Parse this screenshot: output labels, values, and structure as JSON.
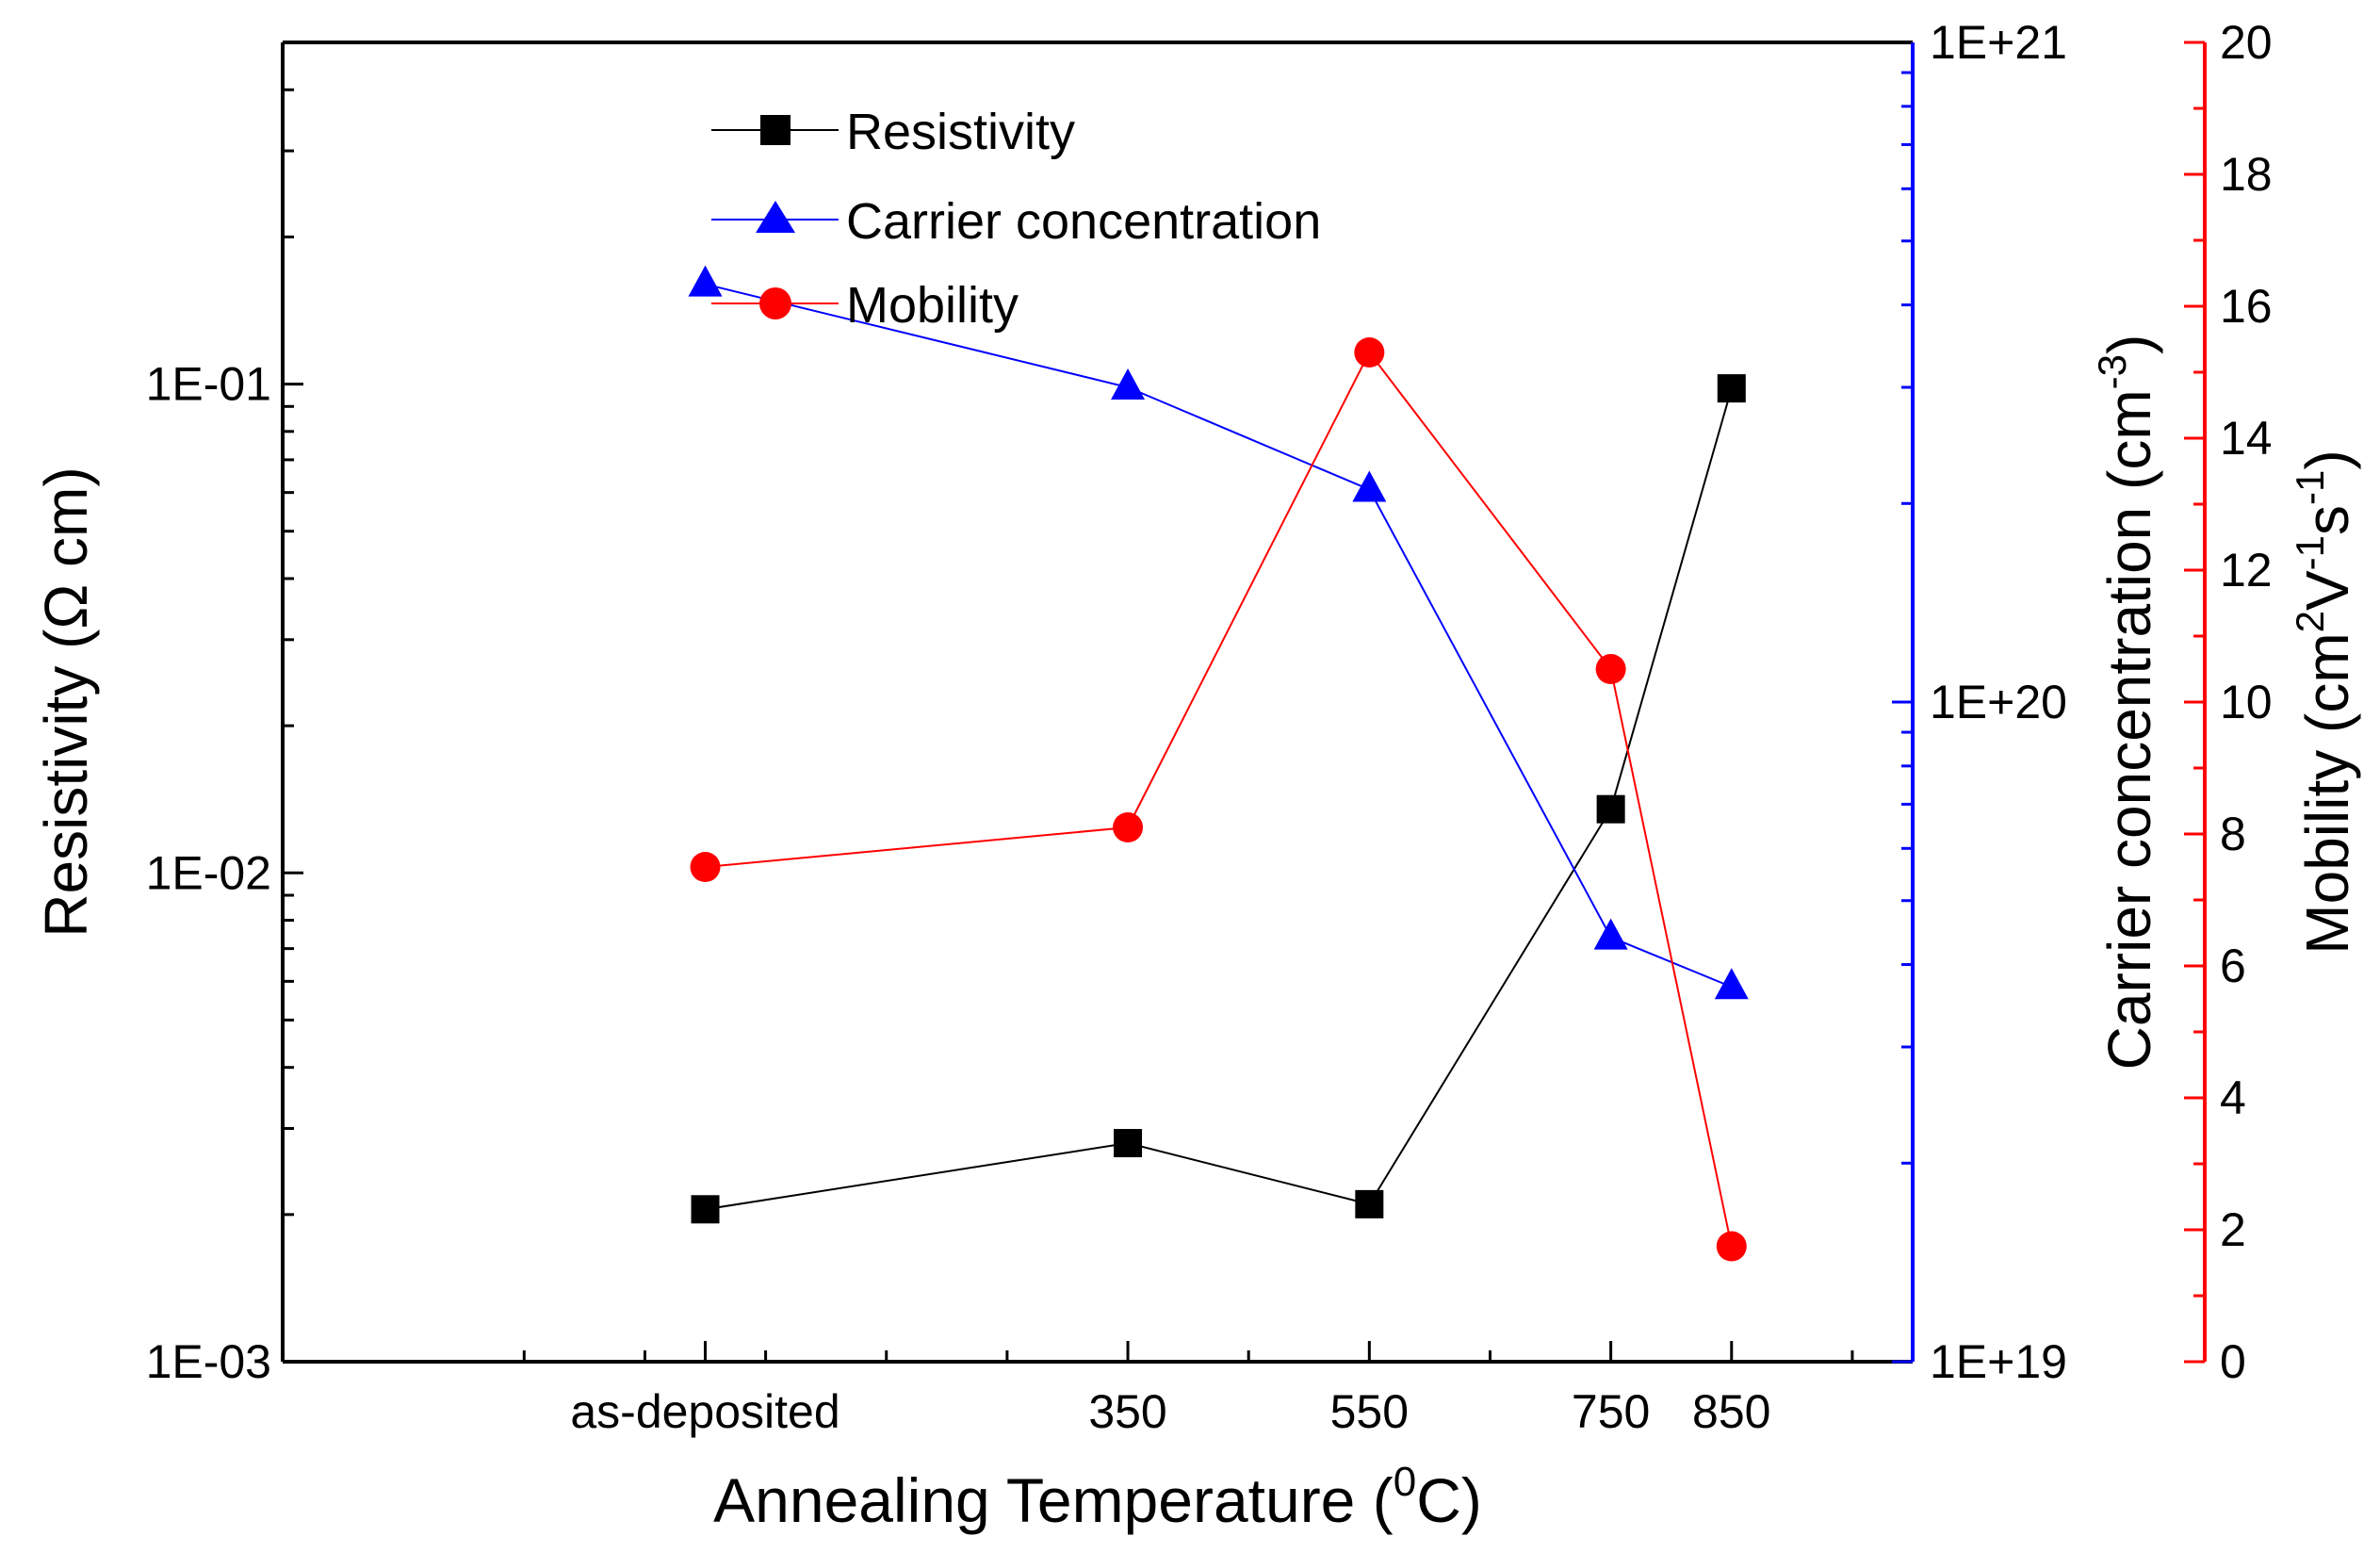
{
  "chart_data": {
    "type": "line",
    "x_axis": {
      "title_main": "Annealing Temperature (",
      "title_sup": "0",
      "title_end": "C)",
      "categories": [
        "as-deposited",
        "350",
        "550",
        "750",
        "850"
      ],
      "positions": [
        0,
        350,
        550,
        750,
        850
      ],
      "range": [
        -350,
        1000
      ]
    },
    "axes": {
      "left": {
        "title": "Resistivity (Ω cm)",
        "scale": "log",
        "range": [
          0.001,
          0.5
        ],
        "tick_labels": [
          "1E-03",
          "1E-02",
          "1E-01"
        ],
        "tick_values": [
          0.001,
          0.01,
          0.1
        ],
        "color": "#000000"
      },
      "right_inner": {
        "title_main": "Carrier concentration (cm",
        "title_sup": "-3",
        "title_end": ")",
        "scale": "log",
        "range": [
          1e+19,
          1e+21
        ],
        "tick_labels": [
          "1E+19",
          "1E+20",
          "1E+21"
        ],
        "tick_values": [
          1e+19,
          1e+20,
          1e+21
        ],
        "color": "#0000ff"
      },
      "right_outer": {
        "title_main": "Mobility (cm",
        "title_sup1": "2",
        "title_mid1": "V",
        "title_sup2": "-1",
        "title_mid2": "s",
        "title_sup3": "-1",
        "title_end": ")",
        "scale": "linear",
        "range": [
          0,
          20
        ],
        "tick_labels": [
          "0",
          "2",
          "4",
          "6",
          "8",
          "10",
          "12",
          "14",
          "16",
          "18",
          "20"
        ],
        "tick_values": [
          0,
          2,
          4,
          6,
          8,
          10,
          12,
          14,
          16,
          18,
          20
        ],
        "color": "#ff0000"
      }
    },
    "series": [
      {
        "name": "Resistivity",
        "axis": "left",
        "marker": "square",
        "color": "#000000",
        "values": [
          0.00205,
          0.0028,
          0.0021,
          0.0135,
          0.098
        ]
      },
      {
        "name": "Carrier concentration",
        "axis": "right_inner",
        "marker": "triangle",
        "color": "#0000ff",
        "values": [
          4.3e+20,
          3e+20,
          2.1e+20,
          4.4e+19,
          3.7e+19
        ]
      },
      {
        "name": "Mobility",
        "axis": "right_outer",
        "marker": "circle",
        "color": "#ff0000",
        "values": [
          7.5,
          8.1,
          15.3,
          10.5,
          1.75
        ]
      }
    ],
    "legend": {
      "position": "top-center",
      "entries": [
        "Resistivity",
        "Carrier concentration",
        "Mobility"
      ]
    }
  }
}
